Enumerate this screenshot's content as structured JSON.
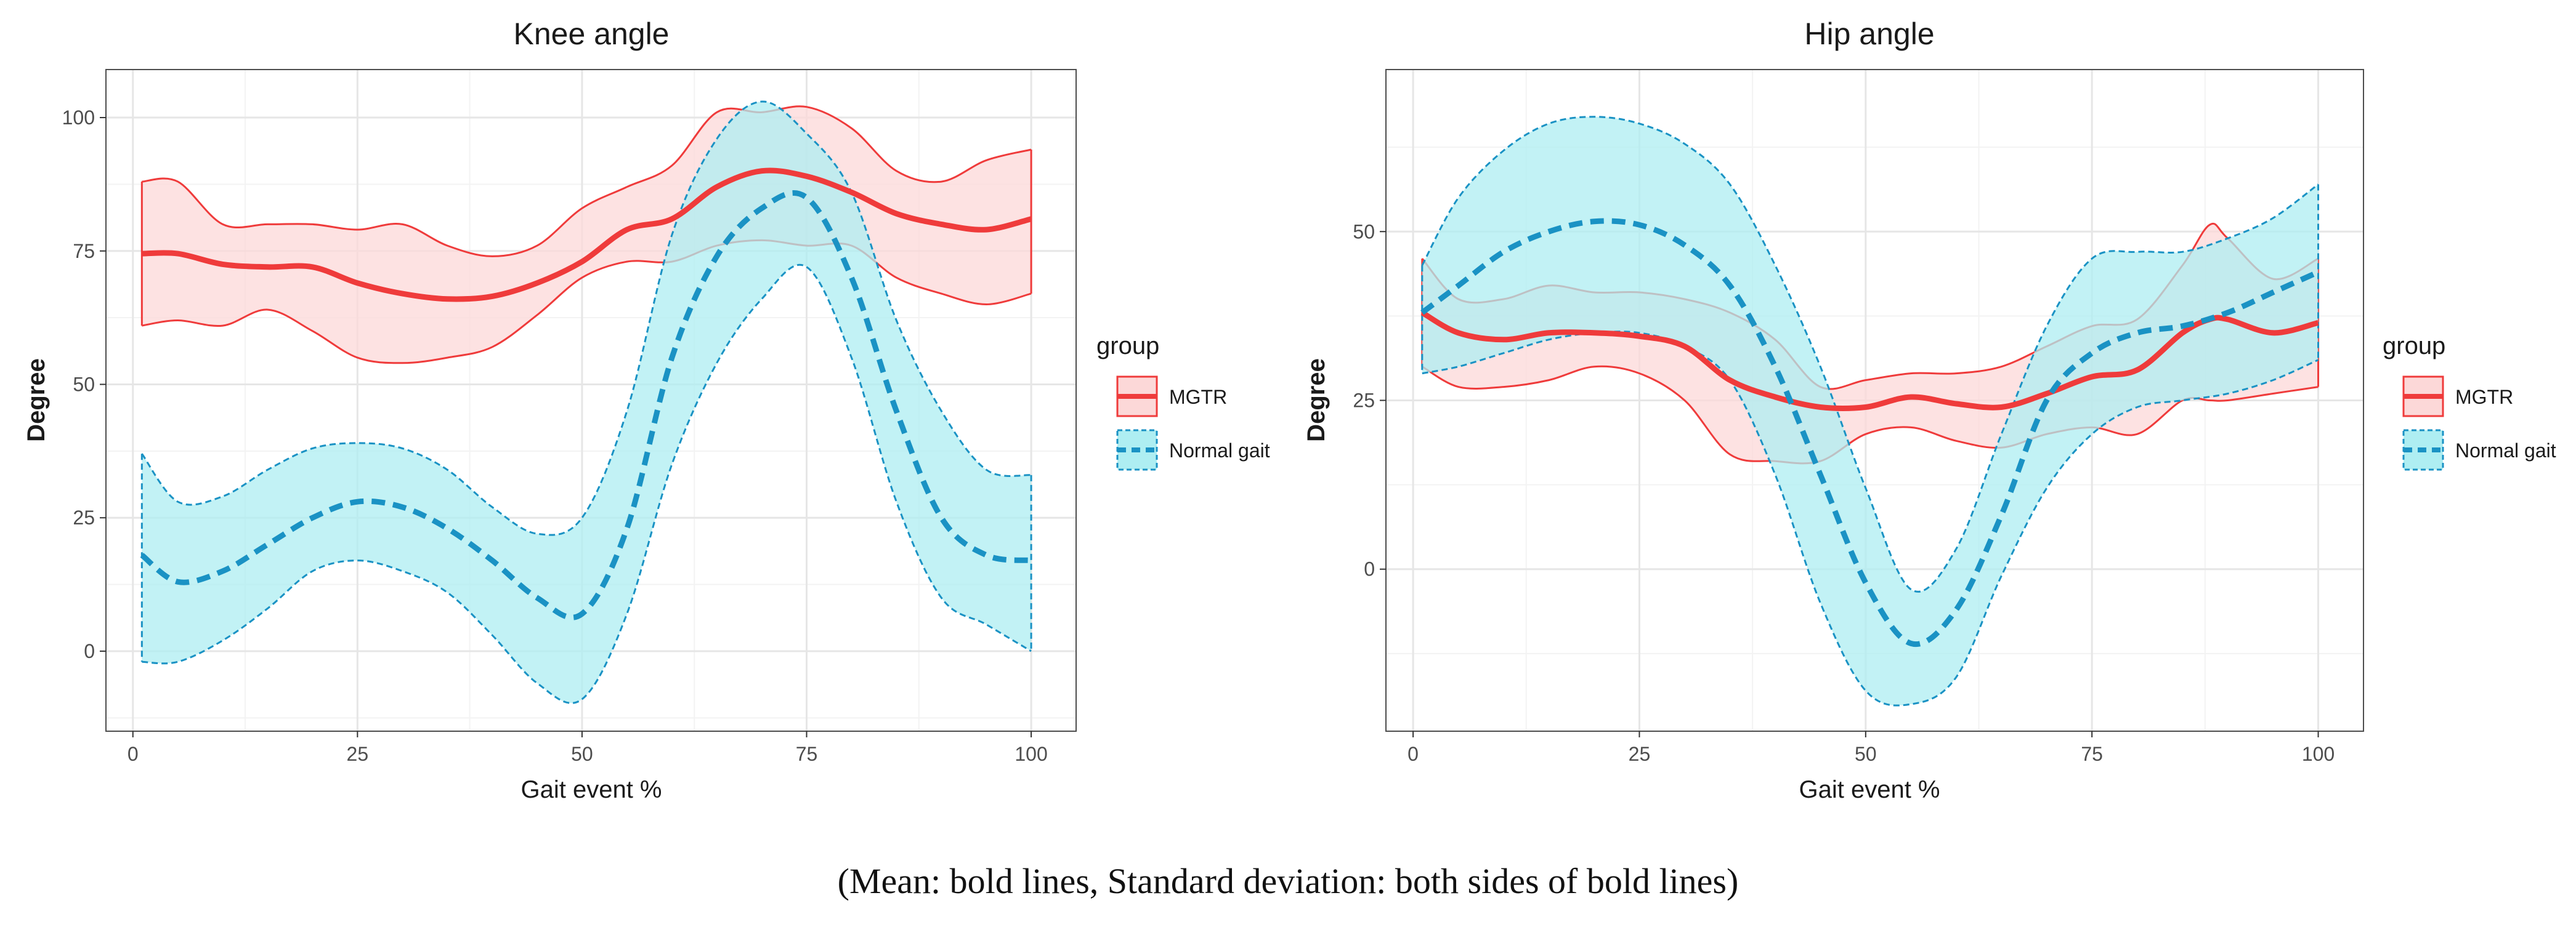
{
  "caption": "(Mean: bold lines, Standard deviation: both sides of bold lines)",
  "colors": {
    "mgtr_line": "#ef3b3b",
    "mgtr_fill": "#fcd8d8",
    "normal_line": "#1a92c4",
    "normal_fill": "#aeeef2",
    "grid_major": "#e6e6e6",
    "grid_minor": "#f3f3f3",
    "panel_border": "#4d4d4d"
  },
  "chart_data": [
    {
      "type": "line",
      "title": "Knee angle",
      "xlabel": "Gait event %",
      "ylabel": "Degree",
      "xlim": [
        -3,
        105
      ],
      "ylim": [
        -15,
        109
      ],
      "xticks": [
        0,
        25,
        50,
        75,
        100
      ],
      "yticks": [
        0,
        25,
        50,
        75,
        100
      ],
      "legend": {
        "title": "group",
        "position": "right"
      },
      "series": [
        {
          "name": "MGTR",
          "style": "solid",
          "x": [
            1,
            5,
            10,
            15,
            20,
            25,
            30,
            35,
            40,
            45,
            50,
            55,
            60,
            65,
            70,
            75,
            80,
            85,
            90,
            95,
            100
          ],
          "mean": [
            74.5,
            74.5,
            72.5,
            72,
            72,
            69,
            67,
            66,
            66.5,
            69,
            73,
            79,
            81,
            87,
            90,
            89,
            86,
            82,
            80,
            79,
            81
          ],
          "upper": [
            88,
            88,
            80,
            80,
            80,
            79,
            80,
            76,
            74,
            76,
            83,
            87,
            91,
            101,
            101,
            102,
            98,
            90,
            88,
            92,
            94
          ],
          "lower": [
            61,
            62,
            61,
            64,
            60,
            55,
            54,
            55,
            57,
            63,
            70,
            73,
            73,
            76,
            77,
            76,
            76,
            70,
            67,
            65,
            67
          ]
        },
        {
          "name": "Normal gait",
          "style": "dashed",
          "x": [
            1,
            5,
            10,
            15,
            20,
            25,
            30,
            35,
            40,
            45,
            50,
            55,
            60,
            65,
            70,
            75,
            80,
            85,
            90,
            95,
            100
          ],
          "mean": [
            18,
            13,
            15,
            20,
            25,
            28,
            27,
            23,
            17,
            10,
            7,
            23,
            55,
            74,
            83,
            85,
            70,
            45,
            25,
            18,
            17
          ],
          "upper": [
            37,
            28,
            29,
            34,
            38,
            39,
            38,
            34,
            27,
            22,
            25,
            45,
            78,
            96,
            103,
            97,
            86,
            62,
            45,
            34,
            33
          ],
          "lower": [
            -2,
            -2,
            2,
            8,
            15,
            17,
            15,
            11,
            3,
            -6,
            -9,
            7,
            35,
            54,
            66,
            72,
            55,
            28,
            10,
            5,
            0
          ]
        }
      ]
    },
    {
      "type": "line",
      "title": "Hip angle",
      "xlabel": "Gait event %",
      "ylabel": "Degree",
      "xlim": [
        -3,
        105
      ],
      "ylim": [
        -24,
        74
      ],
      "xticks": [
        0,
        25,
        50,
        75,
        100
      ],
      "yticks": [
        0,
        25,
        50
      ],
      "legend": {
        "title": "group",
        "position": "right"
      },
      "series": [
        {
          "name": "MGTR",
          "style": "solid",
          "x": [
            1,
            5,
            10,
            15,
            20,
            25,
            30,
            35,
            40,
            45,
            50,
            55,
            60,
            65,
            70,
            75,
            80,
            85,
            88,
            90,
            95,
            100
          ],
          "mean": [
            38,
            35,
            34,
            35,
            35,
            34.5,
            33,
            28,
            25.5,
            24,
            24,
            25.5,
            24.5,
            24,
            26,
            28.5,
            29.5,
            35,
            37,
            37,
            35,
            36.5
          ],
          "upper": [
            46,
            40,
            40,
            42,
            41,
            41,
            40,
            38,
            34,
            27,
            28,
            29,
            29,
            30,
            33,
            36,
            37,
            45,
            51,
            49,
            43,
            46
          ],
          "lower": [
            30,
            27,
            27,
            28,
            30,
            29,
            25,
            17,
            16,
            16,
            20,
            21,
            19,
            18,
            20,
            21,
            20,
            25,
            25,
            25,
            26,
            27
          ]
        },
        {
          "name": "Normal gait",
          "style": "dashed",
          "x": [
            1,
            5,
            10,
            15,
            20,
            25,
            30,
            35,
            40,
            45,
            50,
            55,
            60,
            65,
            70,
            75,
            80,
            85,
            90,
            95,
            100
          ],
          "mean": [
            38,
            42,
            47,
            50,
            51.5,
            51,
            48,
            42,
            30,
            14,
            -2,
            -11,
            -6,
            8,
            25,
            32,
            35,
            36,
            38,
            41,
            44
          ],
          "upper": [
            45,
            55,
            62,
            66,
            67,
            66,
            63,
            57,
            45,
            30,
            12,
            -3,
            3,
            20,
            36,
            46,
            47,
            47,
            49,
            52,
            57
          ],
          "lower": [
            29,
            30,
            32,
            34,
            35,
            35,
            33,
            28,
            14,
            -5,
            -18,
            -20,
            -16,
            -1,
            12,
            20,
            24,
            25,
            26,
            28,
            31
          ]
        }
      ]
    }
  ]
}
